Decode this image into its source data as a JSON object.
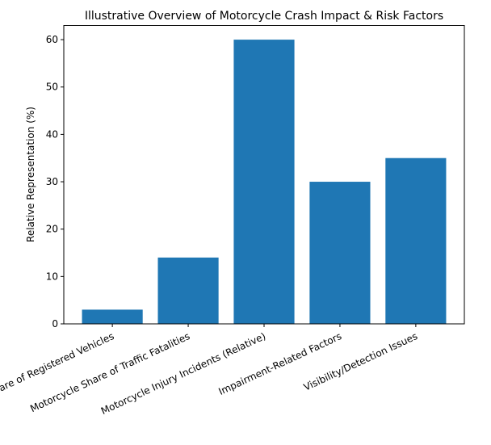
{
  "chart_data": {
    "type": "bar",
    "title": "Illustrative Overview of Motorcycle Crash Impact & Risk Factors",
    "xlabel": "",
    "ylabel": "Relative Representation (%)",
    "categories": [
      "Motorcycle Share of Registered Vehicles",
      "Motorcycle Share of Traffic Fatalities",
      "Motorcycle Injury Incidents (Relative)",
      "Impairment-Related Factors",
      "Visibility/Detection Issues"
    ],
    "values": [
      3,
      14,
      60,
      30,
      35
    ],
    "ylim": [
      0,
      63
    ],
    "yticks": [
      0,
      10,
      20,
      30,
      40,
      50,
      60
    ],
    "grid": false,
    "bar_color": "#1f77b4",
    "xtick_rotation_deg": 25
  }
}
